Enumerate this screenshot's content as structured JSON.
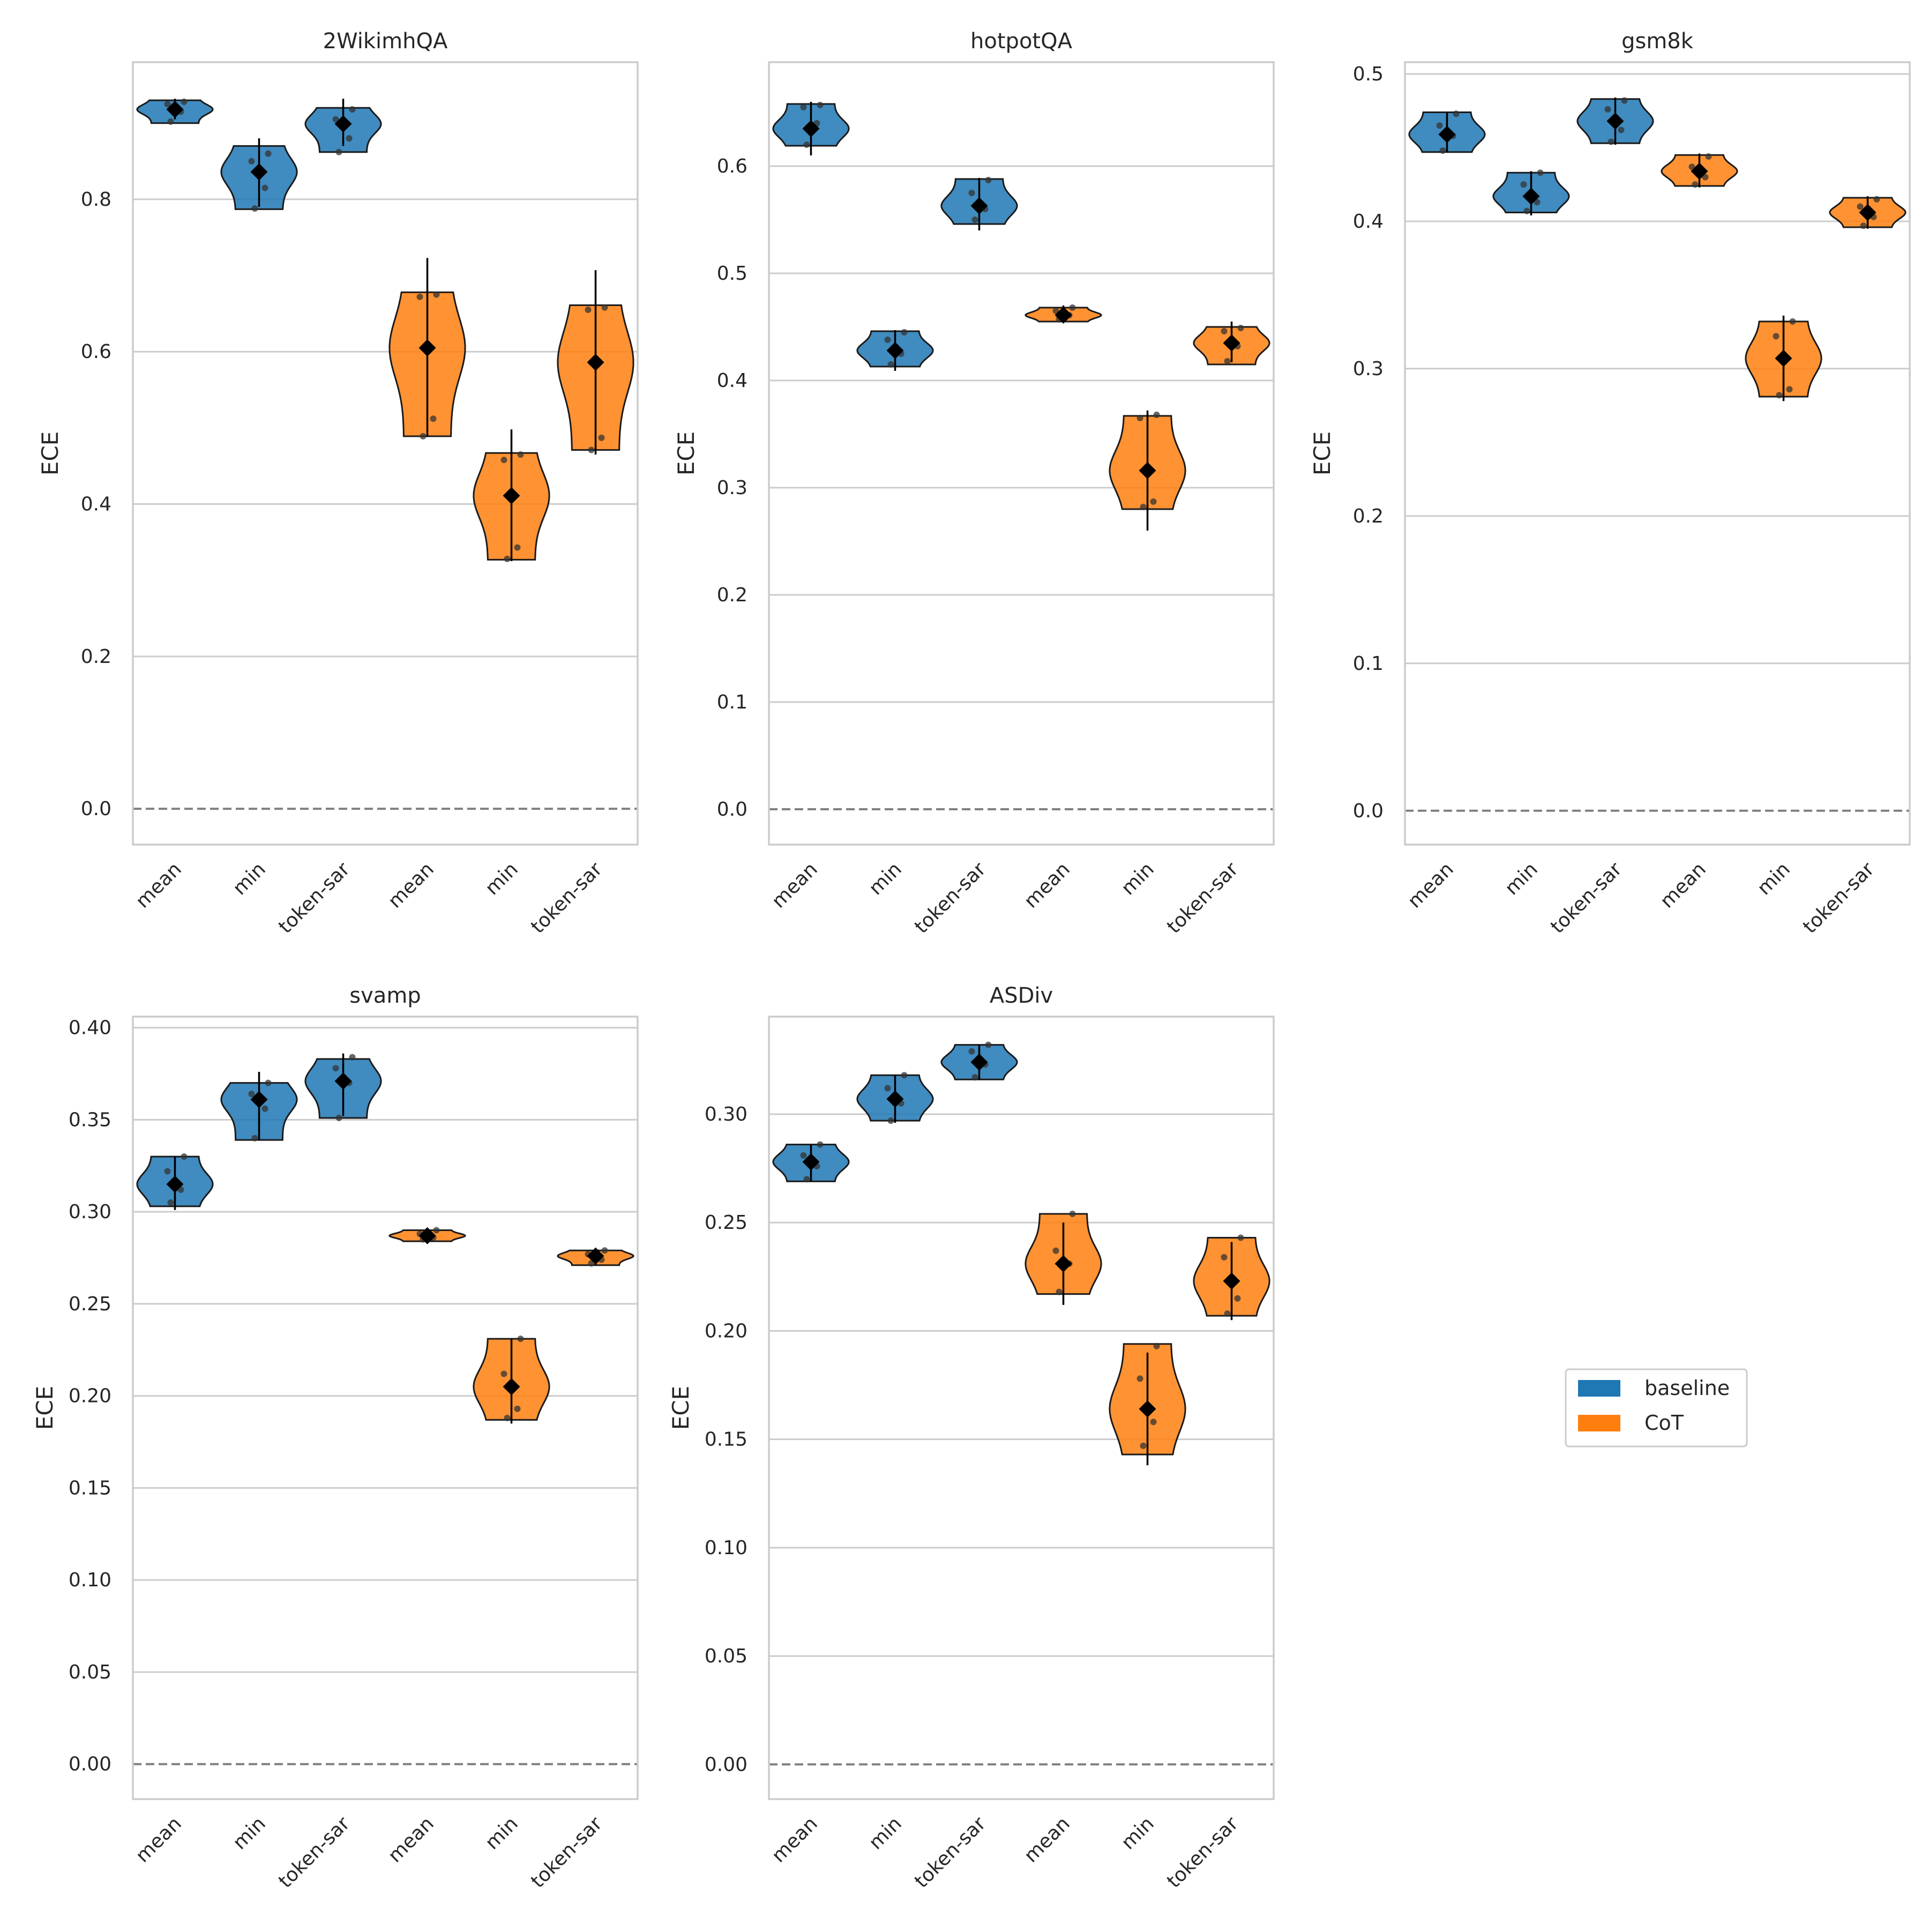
{
  "colors": {
    "baseline": "#1f77b4",
    "CoT": "#ff7f0e",
    "grid": "#cccccc",
    "zero_line": "#808080",
    "marker": "#000000"
  },
  "legend": {
    "position": "center-right",
    "items": [
      {
        "label": "baseline",
        "color": "#1f77b4"
      },
      {
        "label": "CoT",
        "color": "#ff7f0e"
      }
    ]
  },
  "chart_data": [
    {
      "type": "violin",
      "title": "2WikimhQA",
      "xlabel": "",
      "ylabel": "ECE",
      "ylim": [
        -0.047,
        0.98
      ],
      "yticks": [
        "0.0",
        "0.2",
        "0.4",
        "0.6",
        "0.8"
      ],
      "ytick_values": [
        0.0,
        0.2,
        0.4,
        0.6,
        0.8
      ],
      "categories": [
        "mean",
        "min",
        "token-sar",
        "mean",
        "min",
        "token-sar"
      ],
      "groups": [
        "baseline",
        "baseline",
        "baseline",
        "CoT",
        "CoT",
        "CoT"
      ],
      "means": [
        0.918,
        0.836,
        0.899,
        0.605,
        0.411,
        0.586
      ],
      "ranges": [
        [
          0.9,
          0.93
        ],
        [
          0.787,
          0.87
        ],
        [
          0.862,
          0.92
        ],
        [
          0.489,
          0.678
        ],
        [
          0.327,
          0.467
        ],
        [
          0.471,
          0.661
        ]
      ],
      "error_bars": [
        [
          0.905,
          0.932
        ],
        [
          0.79,
          0.88
        ],
        [
          0.87,
          0.932
        ],
        [
          0.488,
          0.723
        ],
        [
          0.325,
          0.498
        ],
        [
          0.465,
          0.707
        ]
      ],
      "points": [
        [
          0.902,
          0.915,
          0.925,
          0.928
        ],
        [
          0.788,
          0.815,
          0.85,
          0.86
        ],
        [
          0.862,
          0.88,
          0.905,
          0.918
        ],
        [
          0.489,
          0.512,
          0.672,
          0.675
        ],
        [
          0.328,
          0.343,
          0.458,
          0.465
        ],
        [
          0.471,
          0.487,
          0.655,
          0.658
        ]
      ],
      "zero_line": true
    },
    {
      "type": "violin",
      "title": "hotpotQA",
      "xlabel": "",
      "ylabel": "ECE",
      "ylim": [
        -0.033,
        0.697
      ],
      "yticks": [
        "0.0",
        "0.1",
        "0.2",
        "0.3",
        "0.4",
        "0.5",
        "0.6"
      ],
      "ytick_values": [
        0.0,
        0.1,
        0.2,
        0.3,
        0.4,
        0.5,
        0.6
      ],
      "categories": [
        "mean",
        "min",
        "token-sar",
        "mean",
        "min",
        "token-sar"
      ],
      "groups": [
        "baseline",
        "baseline",
        "baseline",
        "CoT",
        "CoT",
        "CoT"
      ],
      "means": [
        0.635,
        0.428,
        0.563,
        0.461,
        0.316,
        0.435
      ],
      "ranges": [
        [
          0.619,
          0.658
        ],
        [
          0.413,
          0.446
        ],
        [
          0.546,
          0.588
        ],
        [
          0.455,
          0.468
        ],
        [
          0.28,
          0.367
        ],
        [
          0.415,
          0.45
        ]
      ],
      "error_bars": [
        [
          0.61,
          0.66
        ],
        [
          0.409,
          0.447
        ],
        [
          0.54,
          0.589
        ],
        [
          0.456,
          0.47
        ],
        [
          0.26,
          0.372
        ],
        [
          0.417,
          0.455
        ]
      ],
      "points": [
        [
          0.62,
          0.64,
          0.655,
          0.657
        ],
        [
          0.415,
          0.425,
          0.438,
          0.445
        ],
        [
          0.55,
          0.56,
          0.575,
          0.587
        ],
        [
          0.457,
          0.461,
          0.465,
          0.468
        ],
        [
          0.282,
          0.287,
          0.365,
          0.368
        ],
        [
          0.418,
          0.432,
          0.446,
          0.449
        ]
      ],
      "zero_line": true
    },
    {
      "type": "violin",
      "title": "gsm8k",
      "xlabel": "",
      "ylabel": "ECE",
      "ylim": [
        -0.023,
        0.508
      ],
      "yticks": [
        "0.0",
        "0.1",
        "0.2",
        "0.3",
        "0.4",
        "0.5"
      ],
      "ytick_values": [
        0.0,
        0.1,
        0.2,
        0.3,
        0.4,
        0.5
      ],
      "categories": [
        "mean",
        "min",
        "token-sar",
        "mean",
        "min",
        "token-sar"
      ],
      "groups": [
        "baseline",
        "baseline",
        "baseline",
        "CoT",
        "CoT",
        "CoT"
      ],
      "means": [
        0.459,
        0.417,
        0.468,
        0.434,
        0.307,
        0.406
      ],
      "ranges": [
        [
          0.447,
          0.474
        ],
        [
          0.406,
          0.433
        ],
        [
          0.453,
          0.483
        ],
        [
          0.424,
          0.445
        ],
        [
          0.281,
          0.332
        ],
        [
          0.396,
          0.416
        ]
      ],
      "error_bars": [
        [
          0.447,
          0.474
        ],
        [
          0.404,
          0.434
        ],
        [
          0.452,
          0.484
        ],
        [
          0.423,
          0.446
        ],
        [
          0.278,
          0.336
        ],
        [
          0.395,
          0.417
        ]
      ],
      "points": [
        [
          0.448,
          0.458,
          0.465,
          0.473
        ],
        [
          0.407,
          0.413,
          0.425,
          0.433
        ],
        [
          0.454,
          0.462,
          0.476,
          0.482
        ],
        [
          0.425,
          0.43,
          0.437,
          0.444
        ],
        [
          0.282,
          0.286,
          0.322,
          0.332
        ],
        [
          0.397,
          0.403,
          0.41,
          0.415
        ]
      ],
      "zero_line": true
    },
    {
      "type": "violin",
      "title": "svamp",
      "xlabel": "",
      "ylabel": "ECE",
      "ylim": [
        -0.019,
        0.406
      ],
      "yticks": [
        "0.00",
        "0.05",
        "0.10",
        "0.15",
        "0.20",
        "0.25",
        "0.30",
        "0.35",
        "0.40"
      ],
      "ytick_values": [
        0.0,
        0.05,
        0.1,
        0.15,
        0.2,
        0.25,
        0.3,
        0.35,
        0.4
      ],
      "categories": [
        "mean",
        "min",
        "token-sar",
        "mean",
        "min",
        "token-sar"
      ],
      "groups": [
        "baseline",
        "baseline",
        "baseline",
        "CoT",
        "CoT",
        "CoT"
      ],
      "means": [
        0.315,
        0.361,
        0.371,
        0.287,
        0.205,
        0.276
      ],
      "ranges": [
        [
          0.303,
          0.33
        ],
        [
          0.339,
          0.37
        ],
        [
          0.351,
          0.383
        ],
        [
          0.284,
          0.29
        ],
        [
          0.187,
          0.231
        ],
        [
          0.271,
          0.279
        ]
      ],
      "error_bars": [
        [
          0.301,
          0.33
        ],
        [
          0.339,
          0.376
        ],
        [
          0.352,
          0.386
        ],
        [
          0.284,
          0.29
        ],
        [
          0.185,
          0.231
        ],
        [
          0.271,
          0.279
        ]
      ],
      "points": [
        [
          0.305,
          0.312,
          0.322,
          0.33
        ],
        [
          0.34,
          0.356,
          0.364,
          0.37
        ],
        [
          0.351,
          0.37,
          0.378,
          0.384
        ],
        [
          0.285,
          0.286,
          0.288,
          0.29
        ],
        [
          0.188,
          0.193,
          0.212,
          0.231
        ],
        [
          0.272,
          0.274,
          0.277,
          0.279
        ]
      ],
      "zero_line": true
    },
    {
      "type": "violin",
      "title": "ASDiv",
      "xlabel": "",
      "ylabel": "ECE",
      "ylim": [
        -0.016,
        0.345
      ],
      "yticks": [
        "0.00",
        "0.05",
        "0.10",
        "0.15",
        "0.20",
        "0.25",
        "0.30"
      ],
      "ytick_values": [
        0.0,
        0.05,
        0.1,
        0.15,
        0.2,
        0.25,
        0.3
      ],
      "categories": [
        "mean",
        "min",
        "token-sar",
        "mean",
        "min",
        "token-sar"
      ],
      "groups": [
        "baseline",
        "baseline",
        "baseline",
        "CoT",
        "CoT",
        "CoT"
      ],
      "means": [
        0.278,
        0.307,
        0.324,
        0.231,
        0.164,
        0.223
      ],
      "ranges": [
        [
          0.269,
          0.286
        ],
        [
          0.297,
          0.318
        ],
        [
          0.316,
          0.332
        ],
        [
          0.217,
          0.254
        ],
        [
          0.143,
          0.194
        ],
        [
          0.207,
          0.243
        ]
      ],
      "error_bars": [
        [
          0.269,
          0.286
        ],
        [
          0.296,
          0.318
        ],
        [
          0.316,
          0.332
        ],
        [
          0.212,
          0.25
        ],
        [
          0.138,
          0.19
        ],
        [
          0.205,
          0.241
        ]
      ],
      "points": [
        [
          0.27,
          0.276,
          0.281,
          0.286
        ],
        [
          0.297,
          0.305,
          0.312,
          0.318
        ],
        [
          0.317,
          0.323,
          0.329,
          0.332
        ],
        [
          0.218,
          0.231,
          0.237,
          0.254
        ],
        [
          0.147,
          0.158,
          0.178,
          0.193
        ],
        [
          0.208,
          0.215,
          0.234,
          0.243
        ]
      ],
      "zero_line": true
    }
  ]
}
